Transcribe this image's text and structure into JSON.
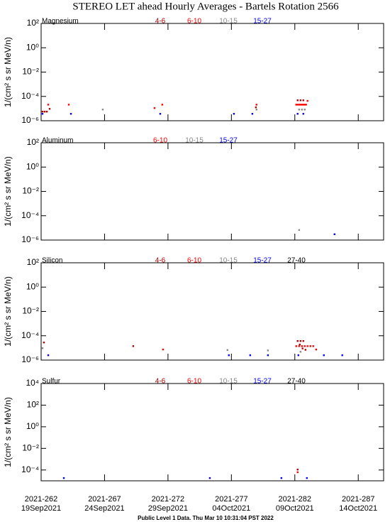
{
  "title": "STEREO LET ahead Hourly Averages - Bartels Rotation 2566",
  "footer": "Public Level 1 Data. Thu Mar 10 10:31:04 PST 2022",
  "x_axis": {
    "xlim": [
      262,
      289
    ],
    "xticks": [
      {
        "value": 262,
        "label": "2021-262"
      },
      {
        "value": 267,
        "label": "2021-267"
      },
      {
        "value": 272,
        "label": "2021-272"
      },
      {
        "value": 277,
        "label": "2021-277"
      },
      {
        "value": 282,
        "label": "2021-282"
      },
      {
        "value": 287,
        "label": "2021-287"
      }
    ],
    "xtick_dates": [
      "19Sep2021",
      "24Sep2021",
      "29Sep2021",
      "04Oct2021",
      "09Oct2021",
      "14Oct2021"
    ]
  },
  "chart_data": [
    {
      "type": "scatter",
      "label": "Magnesium",
      "ylabel": "1/(cm² s sr MeV/n)",
      "log_scale": true,
      "ylim": [
        1e-06,
        100
      ],
      "yticks": [
        {
          "value": 100,
          "label": "10²"
        },
        {
          "value": 1,
          "label": "10⁰"
        },
        {
          "value": 0.01,
          "label": "10⁻²"
        },
        {
          "value": 0.0001,
          "label": "10⁻⁴"
        },
        {
          "value": 1e-06,
          "label": "10⁻⁶"
        }
      ],
      "series": [
        {
          "name": "4-6",
          "color": "#b00000",
          "x": [
            262.11,
            262.28,
            262.45,
            262.67,
            278.93,
            282.22,
            282.45,
            282.67
          ],
          "values": [
            5.6e-06,
            5.6e-06,
            5.6e-06,
            9.5e-06,
            1.26e-05,
            4.8e-05,
            4.8e-05,
            4.8e-05
          ]
        },
        {
          "name": "6-10",
          "color": "#ff0000",
          "x": [
            262.56,
            264.18,
            270.94,
            271.55,
            278.98,
            282.11,
            282.22,
            282.34,
            282.45,
            282.56,
            282.67,
            282.78,
            282.89,
            283.0
          ],
          "values": [
            2.1e-05,
            2.1e-05,
            1.1e-05,
            2.1e-05,
            2.1e-05,
            2.1e-05,
            2.1e-05,
            2.1e-05,
            2.1e-05,
            2.1e-05,
            2.1e-05,
            2.1e-05,
            2.1e-05,
            4.3e-05
          ]
        },
        {
          "name": "10-15",
          "color": "#888888",
          "x": [
            266.86,
            278.98,
            282.34,
            282.56,
            282.78
          ],
          "values": [
            8.3e-06,
            8.3e-06,
            8.3e-06,
            8.3e-06,
            8.3e-06
          ]
        },
        {
          "name": "15-27",
          "color": "#0000ff",
          "x": [
            262.11,
            264.35,
            271.39,
            277.2,
            278.65,
            282.22,
            282.67
          ],
          "values": [
            3.7e-06,
            3.7e-06,
            3.7e-06,
            3.7e-06,
            3.7e-06,
            3.7e-06,
            3.7e-06
          ]
        }
      ]
    },
    {
      "type": "scatter",
      "label": "Aluminum",
      "ylabel": "1/(cm² s sr MeV/n)",
      "log_scale": true,
      "ylim": [
        1e-06,
        100
      ],
      "yticks": [
        {
          "value": 100,
          "label": "10²"
        },
        {
          "value": 1,
          "label": "10⁰"
        },
        {
          "value": 0.01,
          "label": "10⁻²"
        },
        {
          "value": 0.0001,
          "label": "10⁻⁴"
        },
        {
          "value": 1e-06,
          "label": "10⁻⁶"
        }
      ],
      "series": [
        {
          "name": "6-10",
          "color": "#ff0000",
          "x": [],
          "values": []
        },
        {
          "name": "10-15",
          "color": "#888888",
          "x": [
            282.34
          ],
          "values": [
            6.7e-06
          ]
        },
        {
          "name": "15-27",
          "color": "#0000ff",
          "x": [
            285.13
          ],
          "values": [
            3e-06
          ]
        }
      ]
    },
    {
      "type": "scatter",
      "label": "Silicon",
      "ylabel": "1/(cm² s sr MeV/n)",
      "log_scale": true,
      "ylim": [
        1e-06,
        100
      ],
      "yticks": [
        {
          "value": 100,
          "label": "10²"
        },
        {
          "value": 1,
          "label": "10⁰"
        },
        {
          "value": 0.01,
          "label": "10⁻²"
        },
        {
          "value": 0.0001,
          "label": "10⁻⁴"
        },
        {
          "value": 1e-06,
          "label": "10⁻⁶"
        }
      ],
      "series": [
        {
          "name": "4-6",
          "color": "#b00000",
          "x": [
            262.22,
            269.26,
            282.22,
            282.45,
            282.67,
            282.39,
            282.61,
            282.84
          ],
          "values": [
            2.8e-05,
            1.4e-05,
            3.7e-05,
            3.7e-05,
            3.7e-05,
            1.9e-05,
            9e-06,
            7e-06
          ]
        },
        {
          "name": "6-10",
          "color": "#ff0000",
          "x": [
            271.61,
            282.11,
            282.34,
            282.56,
            282.78,
            283.0,
            283.23,
            283.45,
            283.68
          ],
          "values": [
            7.4e-06,
            1.4e-05,
            1.4e-05,
            1.4e-05,
            1.4e-05,
            1.4e-05,
            1.4e-05,
            1.4e-05,
            7.4e-06
          ]
        },
        {
          "name": "10-15",
          "color": "#888888",
          "x": [
            262.11,
            276.69,
            279.88,
            282.45
          ],
          "values": [
            9.5e-06,
            6.7e-06,
            6.2e-06,
            4.8e-06
          ]
        },
        {
          "name": "15-27",
          "color": "#0000ff",
          "x": [
            262.56,
            276.8,
            278.48,
            279.88,
            282.28,
            284.29,
            285.74
          ],
          "values": [
            2.5e-06,
            2.5e-06,
            2.5e-06,
            2.5e-06,
            2.5e-06,
            2.5e-06,
            2.5e-06
          ]
        },
        {
          "name": "27-40",
          "color": "#000000",
          "x": [],
          "values": []
        }
      ]
    },
    {
      "type": "scatter",
      "label": "Sulfur",
      "ylabel": "1/(cm² s sr MeV/n)",
      "log_scale": true,
      "ylim": [
        1e-05,
        10000
      ],
      "yticks": [
        {
          "value": 10000,
          "label": "10⁴"
        },
        {
          "value": 100,
          "label": "10²"
        },
        {
          "value": 1,
          "label": "10⁰"
        },
        {
          "value": 0.01,
          "label": "10⁻²"
        },
        {
          "value": 0.0001,
          "label": "10⁻⁴"
        }
      ],
      "series": [
        {
          "name": "4-6",
          "color": "#b00000",
          "x": [
            282.22
          ],
          "values": [
            0.00011
          ]
        },
        {
          "name": "6-10",
          "color": "#ff0000",
          "x": [
            282.22
          ],
          "values": [
            6.2e-05
          ]
        },
        {
          "name": "10-15",
          "color": "#888888",
          "x": [],
          "values": []
        },
        {
          "name": "15-27",
          "color": "#0000ff",
          "x": [
            263.79,
            275.3,
            280.94,
            282.95
          ],
          "values": [
            1.8e-05,
            1.8e-05,
            1.8e-05,
            1.8e-05
          ]
        },
        {
          "name": "27-40",
          "color": "#000000",
          "x": [],
          "values": []
        }
      ]
    }
  ]
}
